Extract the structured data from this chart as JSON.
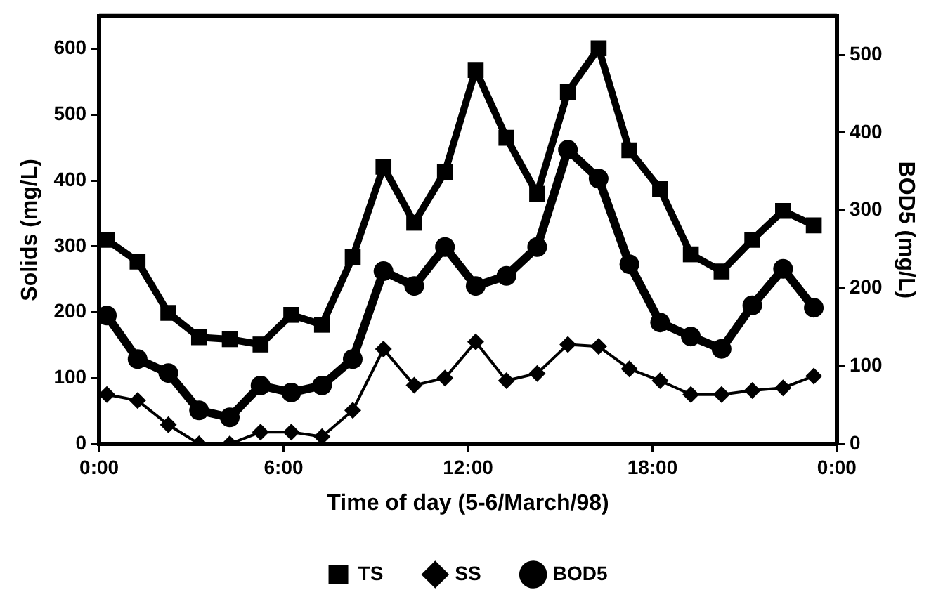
{
  "chart_data": {
    "type": "line",
    "xlabel": "Time of day (5-6/March/98)",
    "ylabel": "Solids (mg/L)",
    "y2label": "BOD5 (mg/L)",
    "x": [
      0.25,
      1.25,
      2.25,
      3.25,
      4.25,
      5.25,
      6.25,
      7.25,
      8.25,
      9.25,
      10.25,
      11.25,
      12.25,
      13.25,
      14.25,
      15.25,
      16.25,
      17.25,
      18.25,
      19.25,
      20.25,
      21.25,
      22.25,
      23.25
    ],
    "xlim": [
      0,
      24
    ],
    "xticks": [
      {
        "value": 0,
        "label": "0:00"
      },
      {
        "value": 6,
        "label": "6:00"
      },
      {
        "value": 12,
        "label": "12:00"
      },
      {
        "value": 18,
        "label": "18:00"
      },
      {
        "value": 24,
        "label": "0:00"
      }
    ],
    "ylim": [
      0,
      650
    ],
    "yticks": [
      0,
      100,
      200,
      300,
      400,
      500,
      600
    ],
    "y2lim": [
      0,
      550
    ],
    "y2ticks": [
      0,
      100,
      200,
      300,
      400,
      500
    ],
    "series": [
      {
        "name": "TS",
        "color": "#000000",
        "marker": "square",
        "values": [
          310,
          277,
          199,
          162,
          159,
          151,
          196,
          181,
          284,
          421,
          336,
          413,
          568,
          465,
          380,
          535,
          601,
          446,
          387,
          288,
          262,
          310,
          354,
          332
        ]
      },
      {
        "name": "SS",
        "color": "#000000",
        "marker": "diamond",
        "values": [
          75,
          66,
          29,
          0,
          0,
          18,
          18,
          11,
          51,
          144,
          89,
          100,
          155,
          96,
          107,
          151,
          148,
          114,
          96,
          75,
          75,
          81,
          85,
          103
        ]
      },
      {
        "name": "BOD5",
        "color": "#000000",
        "marker": "circle",
        "axis": "y2",
        "values": [
          165,
          109,
          91,
          43,
          34,
          75,
          66,
          75,
          109,
          222,
          203,
          253,
          203,
          216,
          253,
          378,
          341,
          231,
          156,
          138,
          122,
          178,
          225,
          175
        ]
      }
    ],
    "grid": false,
    "legend": "bottom"
  }
}
